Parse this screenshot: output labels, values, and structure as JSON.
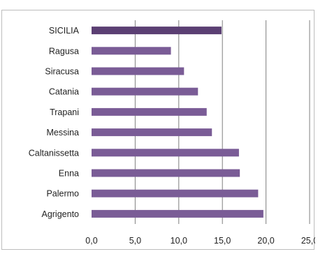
{
  "caption": "",
  "chart_data": {
    "type": "bar",
    "orientation": "horizontal",
    "title": "",
    "xlabel": "",
    "ylabel": "",
    "categories": [
      "SICILIA",
      "Ragusa",
      "Siracusa",
      "Catania",
      "Trapani",
      "Messina",
      "Caltanissetta",
      "Enna",
      "Palermo",
      "Agrigento"
    ],
    "values": [
      14.9,
      9.1,
      10.6,
      12.2,
      13.2,
      13.8,
      16.9,
      17.0,
      19.1,
      19.7
    ],
    "xlim": [
      0,
      25
    ],
    "xticks": [
      "0,0",
      "5,0",
      "10,0",
      "15,0",
      "20,0",
      "25,0"
    ],
    "grid": "vertical",
    "colors": {
      "highlight": "#5b3f73",
      "bar": "#7a5c96",
      "grid": "#7f7f7f"
    }
  }
}
